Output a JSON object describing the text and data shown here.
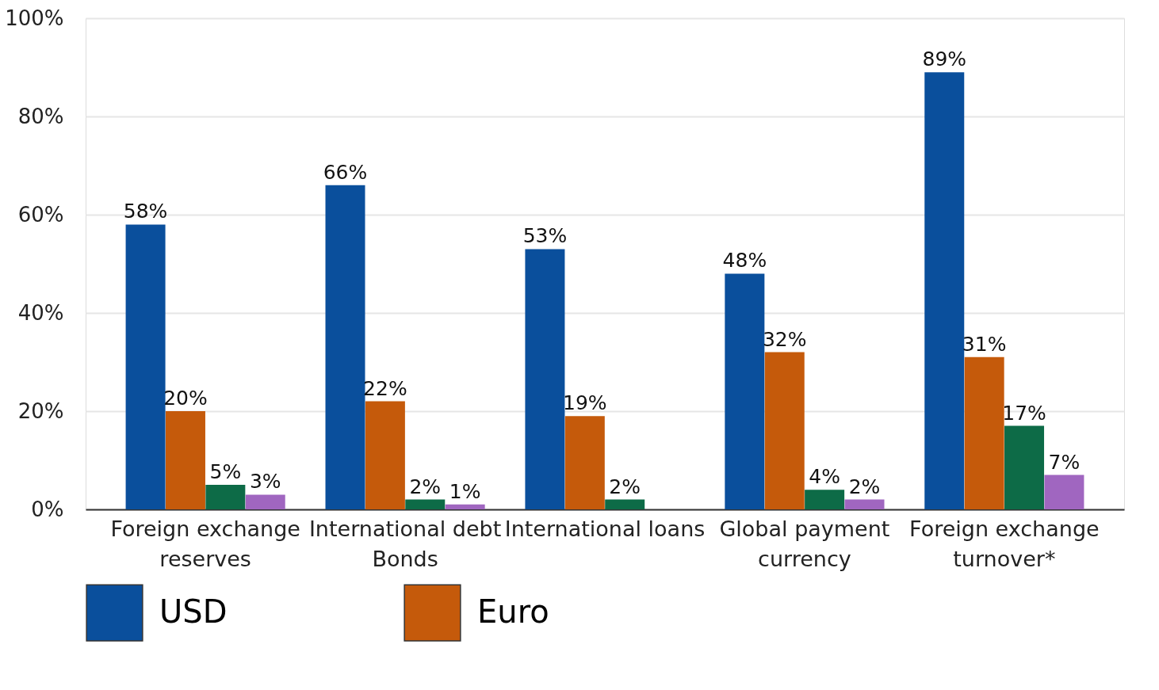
{
  "chart_data": {
    "type": "bar",
    "categories": [
      "Foreign exchange\nreserves",
      "International debt\nBonds",
      "International loans",
      "Global payment\ncurrency",
      "Foreign exchange\nturnover*"
    ],
    "series": [
      {
        "name": "USD",
        "color": "#0a4f9c",
        "values": [
          58,
          66,
          53,
          48,
          89
        ],
        "value_labels": [
          "58%",
          "66%",
          "53%",
          "48%",
          "89%"
        ]
      },
      {
        "name": "Euro",
        "color": "#c55a0b",
        "values": [
          20,
          22,
          19,
          32,
          31
        ],
        "value_labels": [
          "20%",
          "22%",
          "19%",
          "32%",
          "31%"
        ]
      },
      {
        "color": "#0d6b47",
        "values": [
          5,
          2,
          2,
          4,
          17
        ],
        "value_labels": [
          "5%",
          "2%",
          "2%",
          "4%",
          "17%"
        ]
      },
      {
        "color": "#a066c0",
        "values": [
          3,
          1,
          null,
          2,
          7
        ],
        "value_labels": [
          "3%",
          "1%",
          null,
          "2%",
          "7%"
        ]
      }
    ],
    "ylim": [
      0,
      100
    ],
    "yticks": [
      {
        "value": 0,
        "label": "0%"
      },
      {
        "value": 20,
        "label": "20%"
      },
      {
        "value": 40,
        "label": "40%"
      },
      {
        "value": 60,
        "label": "60%"
      },
      {
        "value": 80,
        "label": "80%"
      },
      {
        "value": 100,
        "label": "100%"
      }
    ],
    "grid": "y",
    "legend": "bottom"
  }
}
